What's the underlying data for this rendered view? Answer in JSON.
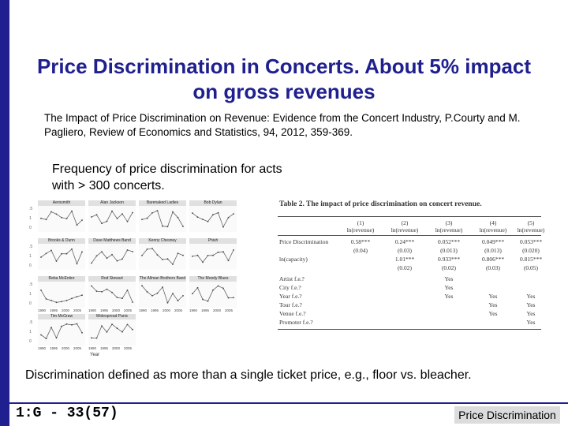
{
  "slide": {
    "title": "Price Discrimination in Concerts.  About 5% impact on gross revenues",
    "citation": "The Impact of Price Discrimination  on Revenue: Evidence from the Concert Industry, P.Courty and M. Pagliero, Review of Economics and Statistics, 94, 2012, 359-369.",
    "figure_caption": "Frequency of price discrimination for acts with > 300 concerts.",
    "definition": "Discrimination defined as more than a single ticket price, e.g., floor vs. bleacher.",
    "slide_number": "1:G - 33(57)",
    "footer_label": "Price Discrimination"
  },
  "figure": {
    "panels": [
      "Aerosmith",
      "Alan Jackson",
      "Barenaked Ladies",
      "Bob Dylan",
      "Brooks & Dunn",
      "Dave Matthews Band",
      "Kenny Chesney",
      "Phish",
      "Reba McEntire",
      "Rod Stewart",
      "The Allman Brothers Band",
      "The Moody Blues",
      "Tim McGraw",
      "Widespread Panic"
    ],
    "x_ticks": [
      "1990",
      "1995",
      "2000",
      "2005"
    ],
    "x_label": "Year",
    "y_ticks": [
      ".5",
      "1",
      "0"
    ]
  },
  "table": {
    "title": "Table 2.  The impact of price discrimination on concert revenue.",
    "col_numbers": [
      "(1)",
      "(2)",
      "(3)",
      "(4)",
      "(5)"
    ],
    "col_heads": [
      "ln(revenue)",
      "ln(revenue)",
      "ln(revenue)",
      "ln(revenue)",
      "ln(revenue)"
    ],
    "rows": [
      {
        "label": "Price Discrimination",
        "values": [
          "0.58***",
          "0.24***",
          "0.052***",
          "0.049***",
          "0.053***"
        ]
      },
      {
        "label": "",
        "values": [
          "(0.04)",
          "(0.03)",
          "(0.013)",
          "(0.013)",
          "(0.020)"
        ]
      },
      {
        "label": "ln(capacity)",
        "values": [
          "",
          "1.01***",
          "0.933***",
          "0.806***",
          "0.815***"
        ]
      },
      {
        "label": "",
        "values": [
          "",
          "(0.02)",
          "(0.02)",
          "(0.03)",
          "(0.05)"
        ]
      },
      {
        "label": "Artist f.e.?",
        "values": [
          "",
          "",
          "Yes",
          "",
          ""
        ]
      },
      {
        "label": "City f.e.?",
        "values": [
          "",
          "",
          "Yes",
          "",
          ""
        ]
      },
      {
        "label": "Year f.e.?",
        "values": [
          "",
          "",
          "Yes",
          "Yes",
          "Yes"
        ]
      },
      {
        "label": "Tour f.e.?",
        "values": [
          "",
          "",
          "",
          "Yes",
          "Yes"
        ]
      },
      {
        "label": "Venue f.e.?",
        "values": [
          "",
          "",
          "",
          "Yes",
          "Yes"
        ]
      },
      {
        "label": "Promoter f.e.?",
        "values": [
          "",
          "",
          "",
          "",
          "Yes"
        ]
      }
    ]
  },
  "colors": {
    "accent": "#1f1f8f",
    "footer_label_bg": "#dcdcdc"
  }
}
